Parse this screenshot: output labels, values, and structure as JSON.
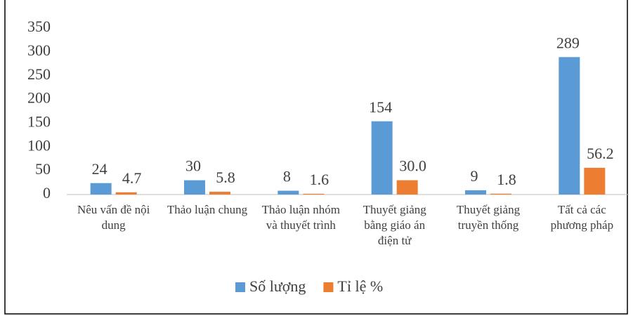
{
  "chart_data": {
    "type": "bar",
    "categories": [
      "Nêu vấn đề nội dung",
      "Thảo luận chung",
      "Thảo luận nhóm và thuyết trình",
      "Thuyết giảng bằng giáo án điện tử",
      "Thuyết giảng truyền thống",
      "Tất cả các phương pháp"
    ],
    "series": [
      {
        "name": "Số lượng",
        "color": "#5b9bd5",
        "values": [
          24,
          30,
          8,
          154,
          9,
          289
        ]
      },
      {
        "name": "Tỉ lệ %",
        "color": "#ed7d31",
        "values": [
          4.7,
          5.8,
          1.6,
          30.0,
          1.8,
          56.2
        ],
        "value_labels": [
          "4.7",
          "5.8",
          "1.6",
          "30.0",
          "1.8",
          "56.2"
        ]
      }
    ],
    "ylim": [
      0,
      350
    ],
    "yticks": [
      0,
      50,
      100,
      150,
      200,
      250,
      300,
      350
    ],
    "grid": false,
    "legend": "bottom"
  }
}
